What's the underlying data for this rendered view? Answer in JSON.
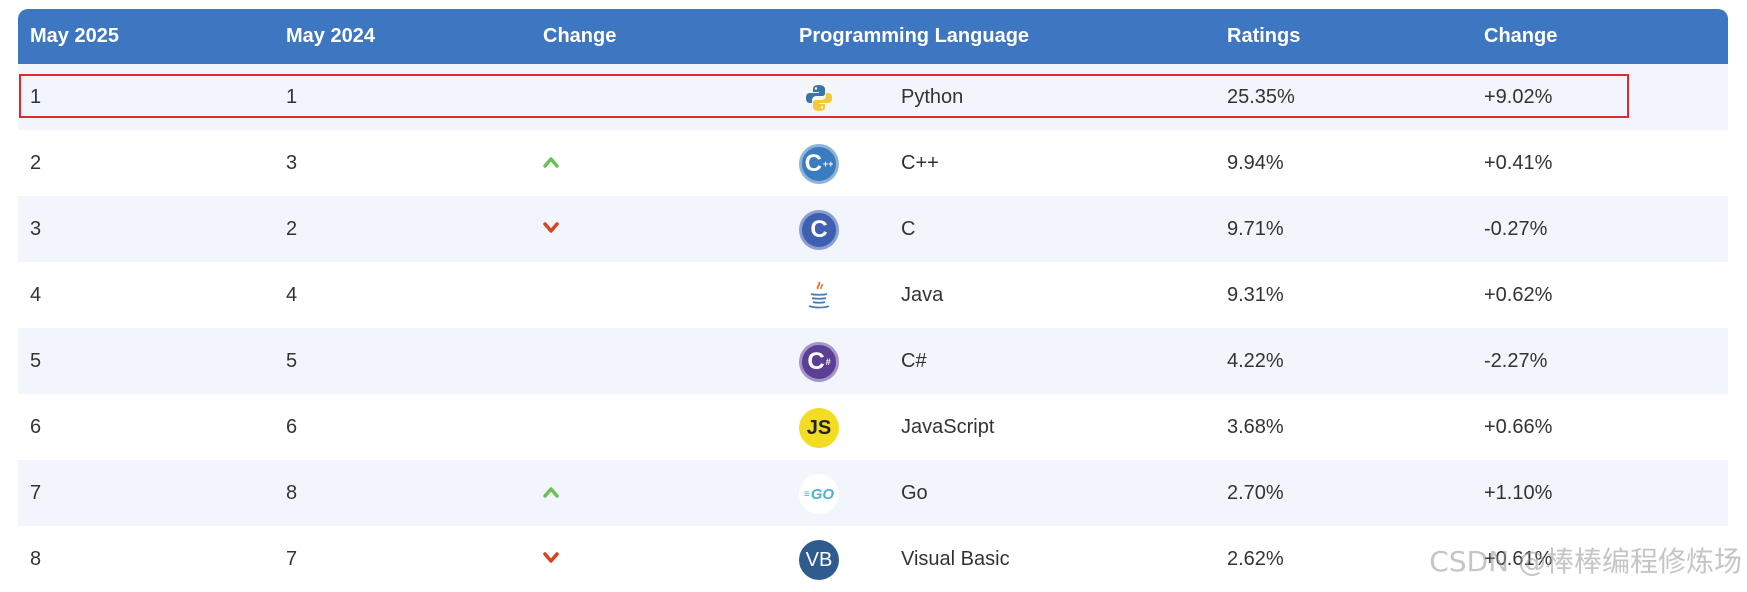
{
  "table": {
    "headers": [
      "May 2025",
      "May 2024",
      "Change",
      "Programming Language",
      "Ratings",
      "Change"
    ],
    "rows": [
      {
        "may2025": "1",
        "may2024": "1",
        "change": "none",
        "icon": "python-icon",
        "language": "Python",
        "ratings": "25.35%",
        "delta": "+9.02%"
      },
      {
        "may2025": "2",
        "may2024": "3",
        "change": "up",
        "icon": "cpp-icon",
        "language": "C++",
        "ratings": "9.94%",
        "delta": "+0.41%"
      },
      {
        "may2025": "3",
        "may2024": "2",
        "change": "down",
        "icon": "c-icon",
        "language": "C",
        "ratings": "9.71%",
        "delta": "-0.27%"
      },
      {
        "may2025": "4",
        "may2024": "4",
        "change": "none",
        "icon": "java-icon",
        "language": "Java",
        "ratings": "9.31%",
        "delta": "+0.62%"
      },
      {
        "may2025": "5",
        "may2024": "5",
        "change": "none",
        "icon": "csharp-icon",
        "language": "C#",
        "ratings": "4.22%",
        "delta": "-2.27%"
      },
      {
        "may2025": "6",
        "may2024": "6",
        "change": "none",
        "icon": "javascript-icon",
        "language": "JavaScript",
        "ratings": "3.68%",
        "delta": "+0.66%"
      },
      {
        "may2025": "7",
        "may2024": "8",
        "change": "up",
        "icon": "go-icon",
        "language": "Go",
        "ratings": "2.70%",
        "delta": "+1.10%"
      },
      {
        "may2025": "8",
        "may2024": "7",
        "change": "down",
        "icon": "visual-basic-icon",
        "language": "Visual Basic",
        "ratings": "2.62%",
        "delta": "+0.61%"
      }
    ]
  },
  "icon_text": {
    "cpp": "C",
    "c": "C",
    "csharp": "C",
    "javascript": "JS",
    "go": "GO",
    "vb": "VB"
  },
  "colors": {
    "header_bg": "#3d77c2",
    "up_arrow": "#6cbf5a",
    "down_arrow": "#d9431e",
    "highlight": "#e0282e"
  },
  "watermark": "CSDN @棒棒编程修炼场"
}
